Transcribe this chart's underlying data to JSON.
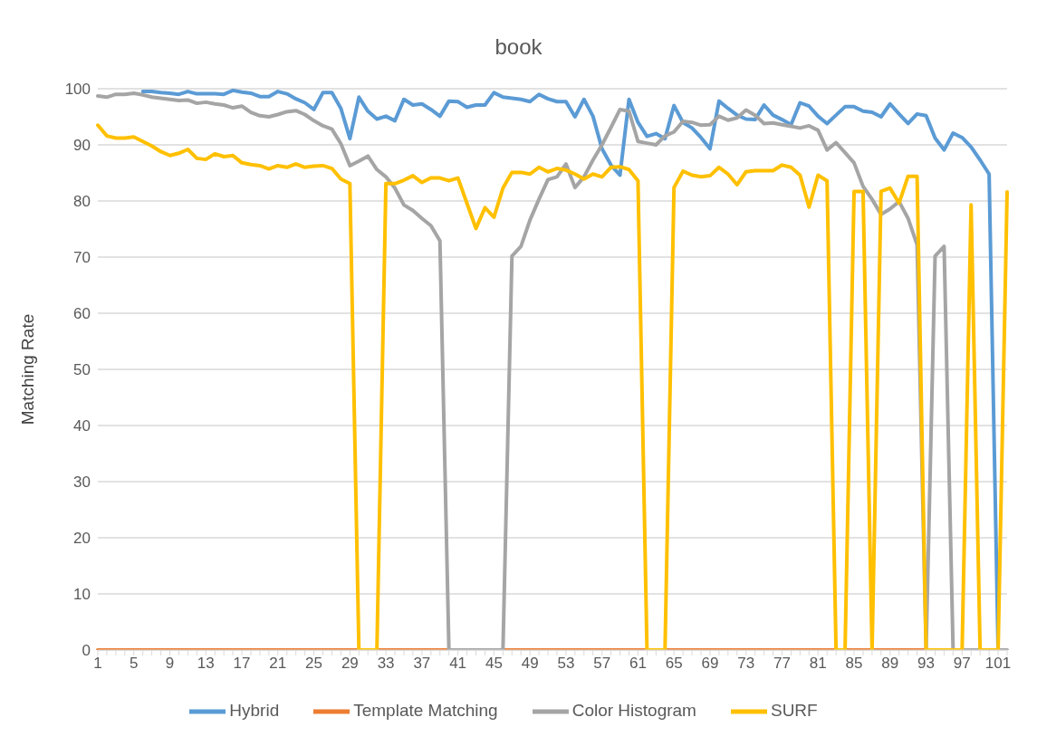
{
  "chart_data": {
    "type": "line",
    "title": "book",
    "ylabel": "Matching Rate",
    "categories": [
      "1",
      null,
      null,
      null,
      "5",
      null,
      null,
      null,
      "9",
      null,
      null,
      null,
      "13",
      null,
      null,
      null,
      "17",
      null,
      null,
      null,
      "21",
      null,
      null,
      null,
      "25",
      null,
      null,
      null,
      "29",
      null,
      null,
      null,
      "33",
      null,
      null,
      null,
      "37",
      null,
      null,
      null,
      "41",
      null,
      null,
      null,
      "45",
      null,
      null,
      null,
      "49",
      null,
      null,
      null,
      "53",
      null,
      null,
      null,
      "57",
      null,
      null,
      null,
      "61",
      null,
      null,
      null,
      "65",
      null,
      null,
      null,
      "69",
      null,
      null,
      null,
      "73",
      null,
      null,
      null,
      "77",
      null,
      null,
      null,
      "81",
      null,
      null,
      null,
      "85",
      null,
      null,
      null,
      "89",
      null,
      null,
      null,
      "93",
      null,
      null,
      null,
      "97",
      null,
      null,
      null,
      "101",
      null
    ],
    "series": [
      {
        "name": "Hybrid",
        "color": "#5b9bd5",
        "values": [
          null,
          null,
          null,
          null,
          null,
          99.5,
          99.5,
          99.3,
          99.2,
          99.0,
          99.5,
          99.1,
          99.1,
          99.1,
          99.0,
          99.7,
          99.4,
          99.2,
          98.6,
          98.6,
          99.5,
          99.1,
          98.2,
          97.5,
          96.3,
          99.3,
          99.3,
          96.5,
          91.1,
          98.5,
          96.0,
          94.6,
          95.1,
          94.3,
          98.1,
          97.1,
          97.3,
          96.3,
          95.1,
          97.8,
          97.7,
          96.7,
          97.1,
          97.1,
          99.3,
          98.5,
          98.3,
          98.1,
          97.7,
          99.0,
          98.2,
          97.7,
          97.7,
          95.0,
          98.1,
          95.1,
          89.3,
          86.4,
          84.6,
          98.1,
          94.0,
          91.5,
          92.0,
          91.1,
          97.0,
          94.0,
          93.0,
          91.3,
          89.3,
          97.8,
          96.5,
          95.3,
          94.6,
          94.5,
          97.1,
          95.3,
          94.5,
          93.6,
          97.5,
          96.9,
          95.1,
          93.8,
          95.3,
          96.8,
          96.8,
          96.0,
          95.8,
          95.0,
          97.3,
          95.5,
          93.8,
          95.5,
          95.2,
          91.2,
          89.1,
          92.1,
          91.3,
          89.6,
          87.3,
          84.8,
          0,
          null
        ]
      },
      {
        "name": "Template Matching",
        "color": "#ed7d31",
        "values": [
          0,
          0,
          0,
          0,
          0,
          0,
          0,
          0,
          0,
          0,
          0,
          0,
          0,
          0,
          0,
          0,
          0,
          0,
          0,
          0,
          0,
          0,
          0,
          0,
          0,
          0,
          0,
          0,
          0,
          0,
          0,
          0,
          0,
          0,
          0,
          0,
          0,
          0,
          0,
          0,
          0,
          0,
          0,
          0,
          0,
          0,
          0,
          0,
          0,
          0,
          0,
          0,
          0,
          0,
          0,
          0,
          0,
          0,
          0,
          0,
          0,
          0,
          0,
          0,
          0,
          0,
          0,
          0,
          0,
          0,
          0,
          0,
          0,
          0,
          0,
          0,
          0,
          0,
          0,
          0,
          0,
          0,
          0,
          0,
          0,
          0,
          0,
          0,
          0,
          0,
          0,
          0,
          0,
          0,
          0,
          0,
          0,
          0,
          0,
          0,
          null,
          null
        ]
      },
      {
        "name": "Color Histogram",
        "color": "#a5a5a5",
        "values": [
          98.7,
          98.5,
          99.0,
          99.0,
          99.2,
          98.9,
          98.5,
          98.3,
          98.1,
          97.9,
          98.0,
          97.4,
          97.6,
          97.3,
          97.1,
          96.6,
          96.9,
          95.8,
          95.2,
          95.0,
          95.4,
          95.9,
          96.1,
          95.4,
          94.3,
          93.4,
          92.8,
          90.2,
          86.3,
          87.1,
          88.0,
          85.6,
          84.3,
          82.3,
          79.3,
          78.3,
          76.9,
          75.6,
          72.9,
          0,
          0,
          0,
          0,
          0,
          0,
          0,
          70.2,
          71.9,
          76.6,
          80.3,
          83.8,
          84.3,
          86.6,
          82.4,
          84.3,
          87.3,
          90.0,
          93.1,
          96.3,
          96.0,
          90.6,
          90.3,
          90.0,
          91.6,
          92.3,
          94.2,
          94.0,
          93.5,
          93.6,
          95.1,
          94.4,
          94.8,
          96.2,
          95.3,
          93.8,
          93.9,
          93.6,
          93.3,
          93.0,
          93.4,
          92.6,
          89.1,
          90.4,
          88.6,
          86.8,
          82.6,
          80.3,
          77.6,
          78.6,
          79.9,
          76.9,
          72.2,
          0,
          70.2,
          71.9,
          0,
          0,
          0,
          0,
          0,
          0,
          0
        ]
      },
      {
        "name": "SURF",
        "color": "#ffc000",
        "values": [
          93.5,
          91.6,
          91.2,
          91.2,
          91.4,
          90.6,
          89.8,
          88.8,
          88.1,
          88.5,
          89.2,
          87.6,
          87.4,
          88.4,
          87.9,
          88.1,
          86.8,
          86.5,
          86.3,
          85.7,
          86.3,
          86.0,
          86.6,
          86.0,
          86.2,
          86.3,
          85.8,
          83.9,
          83.1,
          0,
          0,
          0,
          83.1,
          83.1,
          83.7,
          84.5,
          83.3,
          84.1,
          84.1,
          83.6,
          84.1,
          79.6,
          75.1,
          78.8,
          77.1,
          82.3,
          85.1,
          85.1,
          84.8,
          86.0,
          85.2,
          85.8,
          85.5,
          84.8,
          83.9,
          84.8,
          84.3,
          86.0,
          86.1,
          85.6,
          83.6,
          0,
          0,
          0,
          82.4,
          85.3,
          84.6,
          84.3,
          84.5,
          86.0,
          84.8,
          82.9,
          85.2,
          85.4,
          85.4,
          85.4,
          86.4,
          86.0,
          84.6,
          78.9,
          84.6,
          83.6,
          0,
          0,
          81.7,
          81.7,
          0,
          81.7,
          82.3,
          79.6,
          84.4,
          84.4,
          0,
          0,
          0,
          0,
          0,
          79.3,
          0,
          0,
          0,
          81.6
        ]
      }
    ],
    "ylim": [
      0,
      100
    ],
    "yticks": [
      0,
      10,
      20,
      30,
      40,
      50,
      60,
      70,
      80,
      90,
      100
    ],
    "grid": "y",
    "legend": "bottom",
    "marker": "none"
  }
}
